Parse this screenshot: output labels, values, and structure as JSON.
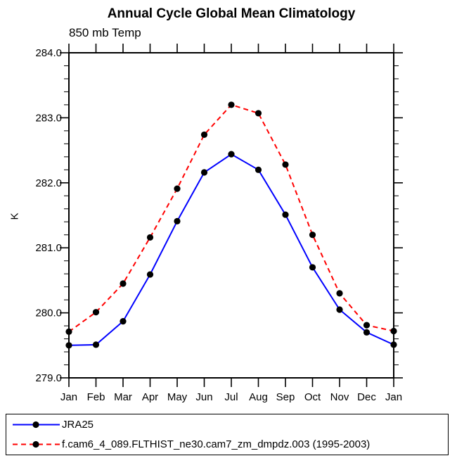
{
  "title": "Annual Cycle Global Mean Climatology",
  "subtitle": "850 mb Temp",
  "colors": {
    "axis": "#000000",
    "background": "#ffffff",
    "series_jra25": "#0000ff",
    "series_model": "#ff0000",
    "marker": "#000000"
  },
  "chart_data": {
    "type": "line",
    "title": "Annual Cycle Global Mean Climatology",
    "subtitle": "850 mb Temp",
    "xlabel": "",
    "ylabel": "K",
    "x": [
      "Jan",
      "Feb",
      "Mar",
      "Apr",
      "May",
      "Jun",
      "Jul",
      "Aug",
      "Sep",
      "Oct",
      "Nov",
      "Dec",
      "Jan"
    ],
    "series": [
      {
        "name": "JRA25",
        "color": "#0000ff",
        "style": "solid",
        "marker": "circle",
        "marker_color": "#000000",
        "values": [
          279.5,
          279.51,
          279.87,
          280.59,
          281.41,
          282.16,
          282.44,
          282.2,
          281.51,
          280.7,
          280.05,
          279.7,
          279.51
        ]
      },
      {
        "name": "f.cam6_4_089.FLTHIST_ne30.cam7_zm_dmpdz.003 (1995-2003)",
        "color": "#ff0000",
        "style": "dashed",
        "marker": "circle",
        "marker_color": "#000000",
        "values": [
          279.71,
          280.01,
          280.45,
          281.16,
          281.91,
          282.74,
          283.2,
          283.07,
          282.28,
          281.2,
          280.3,
          279.81,
          279.72
        ]
      }
    ],
    "ylim": [
      279.0,
      284.0
    ],
    "y_major_step": 1.0,
    "y_minor_step": 0.2,
    "y_tick_labels": [
      "279.0",
      "280.0",
      "281.0",
      "282.0",
      "283.0",
      "284.0"
    ],
    "grid": false,
    "legend_position": "bottom"
  }
}
